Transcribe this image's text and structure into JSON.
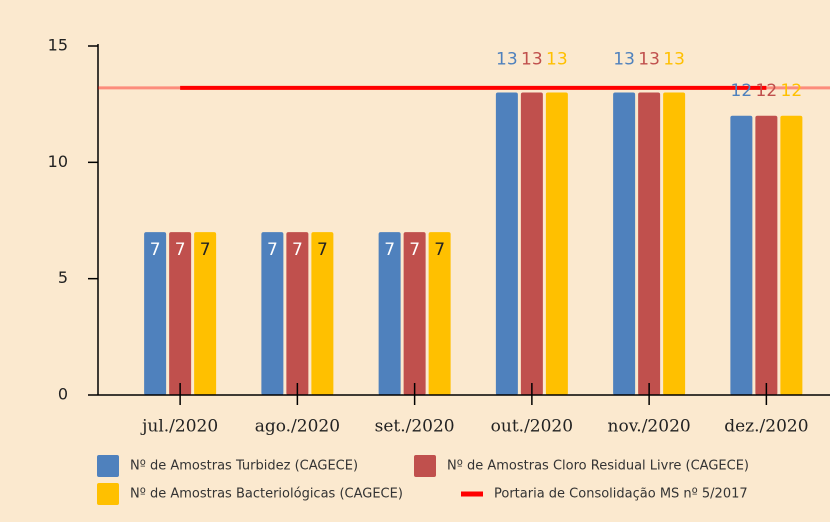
{
  "chart_data": {
    "type": "bar",
    "categories": [
      "jul./2020",
      "ago./2020",
      "set./2020",
      "out./2020",
      "nov./2020",
      "dez./2020"
    ],
    "series": [
      {
        "name": "Nº de Amostras Turbidez (CAGECE)",
        "color": "#4f81bd",
        "values": [
          7,
          7,
          7,
          13,
          13,
          12
        ]
      },
      {
        "name": "Nº de Amostras Cloro Residual Livre (CAGECE)",
        "color": "#c0504d",
        "values": [
          7,
          7,
          7,
          13,
          13,
          12
        ]
      },
      {
        "name": "Nº de Amostras Bacteriológicas (CAGECE)",
        "color": "#ffc000",
        "values": [
          7,
          7,
          7,
          13,
          13,
          12
        ]
      }
    ],
    "reference_line": {
      "name": "Portaria de Consolidação MS nº 5/2017",
      "value": 13.2,
      "color": "#ff0000"
    },
    "ylim": [
      0,
      15
    ],
    "yticks": [
      0,
      5,
      10,
      15
    ]
  }
}
